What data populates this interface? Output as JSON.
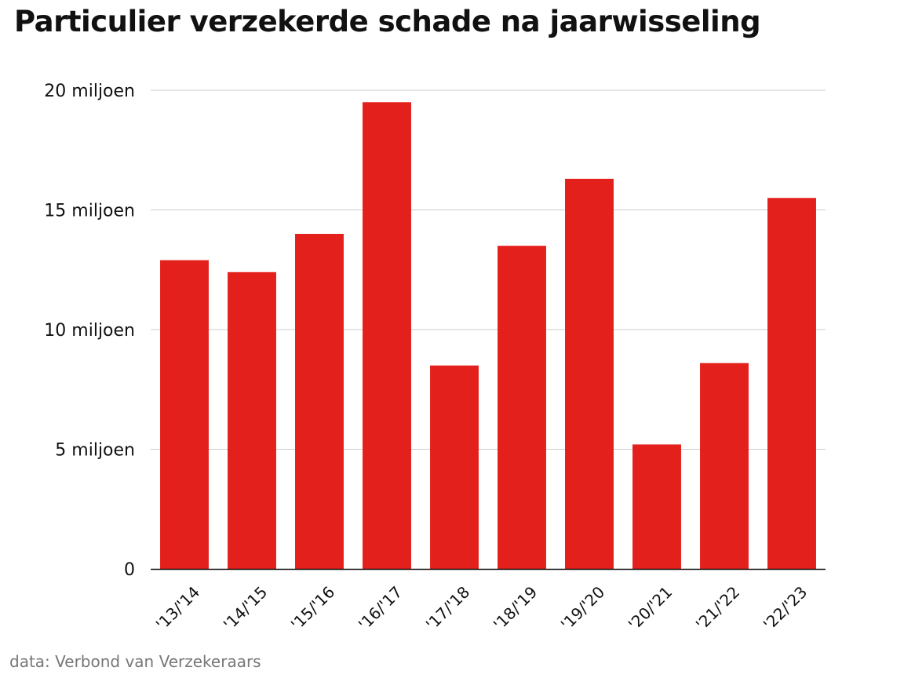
{
  "source_note": "data: Verbond van Verzekeraars",
  "chart_data": {
    "type": "bar",
    "title": "Particulier verzekerde schade na jaarwisseling",
    "xlabel": "",
    "ylabel": "",
    "categories": [
      "'13/'14",
      "'14/'15",
      "'15/'16",
      "'16/'17",
      "'17/'18",
      "'18/'19",
      "'19/'20",
      "'20/'21",
      "'21/'22",
      "'22/'23"
    ],
    "values": [
      12.9,
      12.4,
      14.0,
      19.5,
      8.5,
      13.5,
      16.3,
      5.2,
      8.6,
      15.5
    ],
    "value_unit": "miljoen",
    "ylim": [
      0,
      20
    ],
    "yticks": [
      0,
      5,
      10,
      15,
      20
    ],
    "ytick_labels": [
      "0",
      "5 miljoen",
      "10 miljoen",
      "15 miljoen",
      "20 miljoen"
    ],
    "grid": true,
    "bar_color": "#e3201b",
    "grid_color": "#cccccc",
    "legend": "none"
  }
}
